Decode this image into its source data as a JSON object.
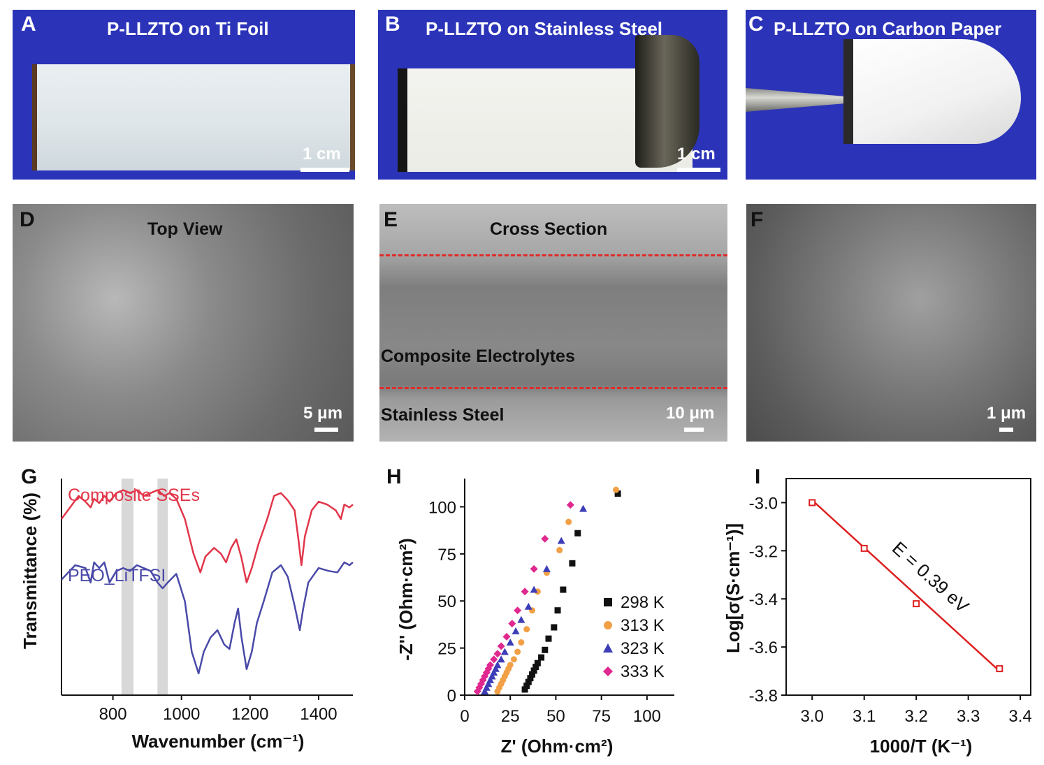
{
  "panels": {
    "A": {
      "label": "A",
      "title": "P-LLZTO on Ti Foil",
      "scale": "1 cm"
    },
    "B": {
      "label": "B",
      "title": "P-LLZTO on Stainless Steel",
      "scale": "1 cm"
    },
    "C": {
      "label": "C",
      "title": "P-LLZTO on Carbon Paper"
    },
    "D": {
      "label": "D",
      "title": "Top View",
      "scale": "5 μm"
    },
    "E": {
      "label": "E",
      "title": "Cross Section",
      "layer": "Composite Electrolytes",
      "substrate": "Stainless Steel",
      "scale": "10 μm"
    },
    "F": {
      "label": "F",
      "scale": "1 μm"
    },
    "G": {
      "label": "G"
    },
    "H": {
      "label": "H"
    },
    "I": {
      "label": "I"
    }
  },
  "colors": {
    "photo_bg": "#2b34b8",
    "red": "#e2364a",
    "blue": "#4a4aa8",
    "black": "#111111",
    "orange": "#f2a046",
    "purple": "#3d3db8",
    "magenta": "#e0288f",
    "fit": "#dd1f1f"
  },
  "chart_data": [
    {
      "type": "line",
      "xlabel": "Wavenumber (cm⁻¹)",
      "ylabel": "Transmittance (%)",
      "xlim": [
        650,
        1500
      ],
      "xticks": [
        800,
        1000,
        1200,
        1400
      ],
      "highlight_bands": [
        [
          825,
          860
        ],
        [
          930,
          960
        ]
      ],
      "series": [
        {
          "name": "Composite SSEs",
          "color": "#e2364a",
          "points": [
            [
              650,
              0.62
            ],
            [
              700,
              0.78
            ],
            [
              720,
              0.74
            ],
            [
              735,
              0.7
            ],
            [
              745,
              0.76
            ],
            [
              760,
              0.73
            ],
            [
              775,
              0.78
            ],
            [
              790,
              0.74
            ],
            [
              810,
              0.8
            ],
            [
              830,
              0.82
            ],
            [
              850,
              0.8
            ],
            [
              870,
              0.82
            ],
            [
              890,
              0.78
            ],
            [
              910,
              0.8
            ],
            [
              930,
              0.82
            ],
            [
              950,
              0.78
            ],
            [
              965,
              0.8
            ],
            [
              985,
              0.76
            ],
            [
              1010,
              0.62
            ],
            [
              1035,
              0.38
            ],
            [
              1055,
              0.25
            ],
            [
              1070,
              0.36
            ],
            [
              1095,
              0.42
            ],
            [
              1115,
              0.38
            ],
            [
              1130,
              0.32
            ],
            [
              1145,
              0.42
            ],
            [
              1160,
              0.48
            ],
            [
              1175,
              0.35
            ],
            [
              1190,
              0.18
            ],
            [
              1205,
              0.28
            ],
            [
              1225,
              0.45
            ],
            [
              1250,
              0.62
            ],
            [
              1270,
              0.78
            ],
            [
              1290,
              0.8
            ],
            [
              1310,
              0.75
            ],
            [
              1330,
              0.68
            ],
            [
              1340,
              0.5
            ],
            [
              1350,
              0.3
            ],
            [
              1360,
              0.5
            ],
            [
              1380,
              0.68
            ],
            [
              1400,
              0.74
            ],
            [
              1425,
              0.72
            ],
            [
              1450,
              0.68
            ],
            [
              1465,
              0.62
            ],
            [
              1475,
              0.72
            ],
            [
              1490,
              0.7
            ],
            [
              1500,
              0.72
            ]
          ]
        },
        {
          "name": "PEO_LiTFSI",
          "color": "#4a4aa8",
          "points": [
            [
              650,
              0.2
            ],
            [
              690,
              0.3
            ],
            [
              720,
              0.28
            ],
            [
              735,
              0.18
            ],
            [
              745,
              0.32
            ],
            [
              760,
              0.28
            ],
            [
              775,
              0.32
            ],
            [
              790,
              0.18
            ],
            [
              810,
              0.26
            ],
            [
              830,
              0.28
            ],
            [
              850,
              0.26
            ],
            [
              870,
              0.3
            ],
            [
              890,
              0.28
            ],
            [
              910,
              0.26
            ],
            [
              930,
              0.18
            ],
            [
              945,
              0.14
            ],
            [
              960,
              0.18
            ],
            [
              985,
              0.24
            ],
            [
              1010,
              0.05
            ],
            [
              1030,
              -0.3
            ],
            [
              1050,
              -0.45
            ],
            [
              1065,
              -0.3
            ],
            [
              1085,
              -0.2
            ],
            [
              1105,
              -0.15
            ],
            [
              1125,
              -0.25
            ],
            [
              1140,
              -0.28
            ],
            [
              1155,
              -0.1
            ],
            [
              1165,
              0.0
            ],
            [
              1175,
              -0.2
            ],
            [
              1190,
              -0.42
            ],
            [
              1205,
              -0.3
            ],
            [
              1220,
              -0.1
            ],
            [
              1240,
              0.05
            ],
            [
              1265,
              0.25
            ],
            [
              1290,
              0.3
            ],
            [
              1310,
              0.22
            ],
            [
              1330,
              0.02
            ],
            [
              1345,
              -0.15
            ],
            [
              1355,
              0.0
            ],
            [
              1370,
              0.18
            ],
            [
              1400,
              0.28
            ],
            [
              1430,
              0.26
            ],
            [
              1455,
              0.25
            ],
            [
              1475,
              0.32
            ],
            [
              1490,
              0.3
            ],
            [
              1500,
              0.32
            ]
          ]
        }
      ]
    },
    {
      "type": "scatter",
      "xlabel": "Z' (Ohm·cm²)",
      "ylabel": "-Z'' (Ohm·cm²)",
      "xlim": [
        0,
        115
      ],
      "ylim": [
        0,
        115
      ],
      "xticks": [
        0,
        25,
        50,
        75,
        100
      ],
      "yticks": [
        0,
        25,
        50,
        75,
        100
      ],
      "legend_position": "bottom-right",
      "series": [
        {
          "name": "298 K",
          "marker": "square",
          "color": "#111111",
          "points": [
            [
              33,
              3
            ],
            [
              34,
              5
            ],
            [
              35,
              7
            ],
            [
              36,
              9
            ],
            [
              37,
              11
            ],
            [
              38,
              13
            ],
            [
              39,
              15
            ],
            [
              40,
              17
            ],
            [
              42,
              20
            ],
            [
              44,
              24
            ],
            [
              46,
              30
            ],
            [
              49,
              36
            ],
            [
              51,
              45
            ],
            [
              54,
              56
            ],
            [
              59,
              70
            ],
            [
              62,
              86
            ],
            [
              84,
              107
            ]
          ]
        },
        {
          "name": "313 K",
          "marker": "circle",
          "color": "#f2a046",
          "points": [
            [
              18,
              2
            ],
            [
              19,
              4
            ],
            [
              20,
              6
            ],
            [
              21,
              8
            ],
            [
              22,
              10
            ],
            [
              23,
              12
            ],
            [
              24,
              14
            ],
            [
              25,
              16
            ],
            [
              27,
              19
            ],
            [
              29,
              23
            ],
            [
              31,
              28
            ],
            [
              34,
              35
            ],
            [
              37,
              45
            ],
            [
              40,
              55
            ],
            [
              45,
              65
            ],
            [
              52,
              77
            ],
            [
              57,
              92
            ],
            [
              83,
              109
            ]
          ]
        },
        {
          "name": "323 K",
          "marker": "triangle",
          "color": "#3d3db8",
          "points": [
            [
              11,
              2
            ],
            [
              12,
              4
            ],
            [
              13,
              6
            ],
            [
              14,
              8
            ],
            [
              15,
              10
            ],
            [
              16,
              12
            ],
            [
              17,
              14
            ],
            [
              18,
              16
            ],
            [
              20,
              19
            ],
            [
              22,
              23
            ],
            [
              25,
              28
            ],
            [
              28,
              34
            ],
            [
              31,
              40
            ],
            [
              35,
              47
            ],
            [
              38,
              56
            ],
            [
              45,
              67
            ],
            [
              53,
              82
            ],
            [
              65,
              99
            ]
          ]
        },
        {
          "name": "333 K",
          "marker": "diamond",
          "color": "#e0288f",
          "points": [
            [
              7,
              2
            ],
            [
              8,
              4
            ],
            [
              9,
              6
            ],
            [
              10,
              8
            ],
            [
              11,
              10
            ],
            [
              12,
              12
            ],
            [
              13,
              14
            ],
            [
              14,
              16
            ],
            [
              16,
              19
            ],
            [
              18,
              22
            ],
            [
              20,
              26
            ],
            [
              23,
              31
            ],
            [
              26,
              38
            ],
            [
              29,
              45
            ],
            [
              33,
              55
            ],
            [
              38,
              67
            ],
            [
              44,
              83
            ],
            [
              58,
              101
            ]
          ]
        }
      ]
    },
    {
      "type": "scatter",
      "xlabel": "1000/T (K⁻¹)",
      "ylabel": "Log[σ(S·cm⁻¹)]",
      "xlim": [
        2.95,
        3.42
      ],
      "ylim": [
        -3.8,
        -2.9
      ],
      "xticks": [
        3.0,
        3.1,
        3.2,
        3.3,
        3.4
      ],
      "yticks": [
        -3.0,
        -3.2,
        -3.4,
        -3.6,
        -3.8
      ],
      "annotation": "E = 0.39 eV",
      "series": [
        {
          "name": "data",
          "marker": "square-open",
          "color": "#dd1f1f",
          "points": [
            [
              3.0,
              -3.0
            ],
            [
              3.1,
              -3.19
            ],
            [
              3.2,
              -3.42
            ],
            [
              3.36,
              -3.69
            ]
          ]
        }
      ],
      "fit": {
        "color": "#dd1f1f",
        "points": [
          [
            3.0,
            -2.99
          ],
          [
            3.36,
            -3.7
          ]
        ]
      }
    }
  ]
}
